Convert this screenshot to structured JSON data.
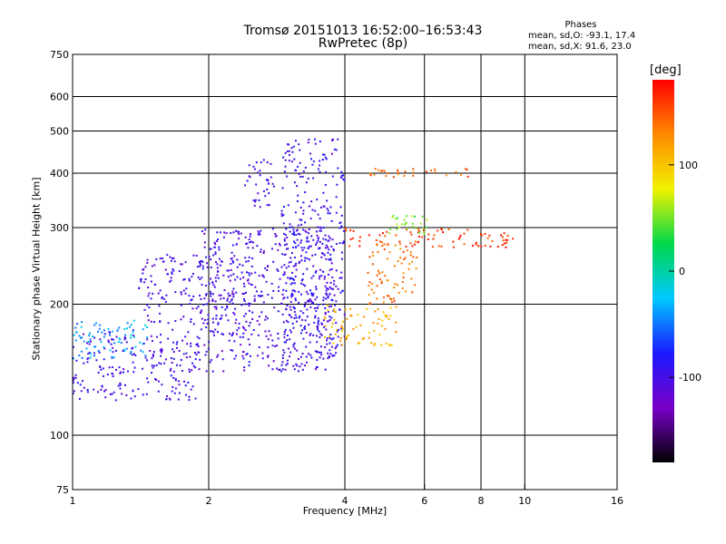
{
  "title": "Tromsø 20151013 16:52:00–16:53:43",
  "subtitle": "RwPretec (8p)",
  "phases_box": {
    "heading": "Phases",
    "line_o": "mean, sd,O: -93.1, 17.4",
    "line_x": "mean, sd,X:  91.6, 23.0"
  },
  "colorbar": {
    "unit": "[deg]",
    "ticks": [
      "100",
      "0",
      "-100"
    ],
    "tick_values": [
      100,
      0,
      -100
    ],
    "range": [
      -180,
      180
    ],
    "colors": [
      "#000000",
      "#7a00c8",
      "#1a1aff",
      "#00c8ff",
      "#00d84a",
      "#f2f200",
      "#ff8a00",
      "#ff0000"
    ]
  },
  "chart_data": {
    "type": "scatter",
    "xlabel": "Frequency [MHz]",
    "ylabel": "Stationary phase Virtual Height [km]",
    "x_scale": "log",
    "y_scale": "log",
    "xlim": [
      1,
      16
    ],
    "ylim": [
      75,
      750
    ],
    "x_ticks": [
      1,
      2,
      4,
      6,
      8,
      10,
      16
    ],
    "x_tick_labels": [
      "1",
      "2",
      "4",
      "6",
      "8",
      "10",
      "16"
    ],
    "y_ticks": [
      75,
      100,
      200,
      300,
      400,
      500,
      600,
      750
    ],
    "y_tick_labels": [
      "75",
      "100",
      "200",
      "300",
      "400",
      "500",
      "600",
      "750"
    ],
    "grid": true,
    "color_encodes": "phase [deg]",
    "point_groups": [
      {
        "x_range": [
          1.0,
          1.9
        ],
        "y_range": [
          120,
          175
        ],
        "phase": -100
      },
      {
        "x_range": [
          1.0,
          1.5
        ],
        "y_range": [
          150,
          185
        ],
        "phase": -35
      },
      {
        "x_range": [
          1.4,
          2.5
        ],
        "y_range": [
          180,
          260
        ],
        "phase": -100
      },
      {
        "x_range": [
          1.9,
          3.8
        ],
        "y_range": [
          140,
          300
        ],
        "phase": -100
      },
      {
        "x_range": [
          2.4,
          2.8
        ],
        "y_range": [
          330,
          430
        ],
        "phase": -100
      },
      {
        "x_range": [
          2.9,
          4.0
        ],
        "y_range": [
          150,
          480
        ],
        "phase": -95
      },
      {
        "x_range": [
          3.6,
          5.2
        ],
        "y_range": [
          160,
          200
        ],
        "phase": 110
      },
      {
        "x_range": [
          4.5,
          5.8
        ],
        "y_range": [
          200,
          280
        ],
        "phase": 140
      },
      {
        "x_range": [
          4.0,
          9.5
        ],
        "y_range": [
          270,
          300
        ],
        "phase": 160
      },
      {
        "x_range": [
          4.5,
          7.5
        ],
        "y_range": [
          390,
          410
        ],
        "phase": 140
      },
      {
        "x_range": [
          5.0,
          6.2
        ],
        "y_range": [
          290,
          320
        ],
        "phase": 50
      }
    ]
  }
}
